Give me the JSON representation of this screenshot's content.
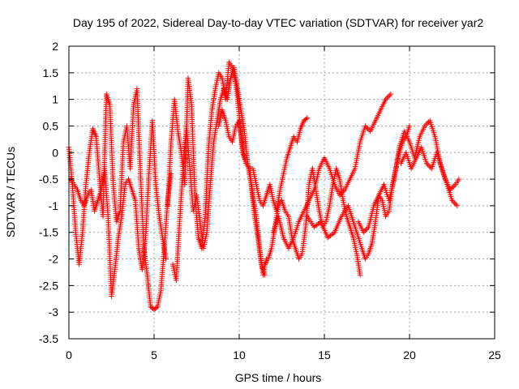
{
  "chart_data": {
    "type": "scatter",
    "title": "Day 195 of 2022, Sidereal Day-to-day VTEC variation (SDTVAR) for receiver yar2",
    "xlabel": "GPS time / hours",
    "ylabel": "SDTVAR / TECUs",
    "xlim": [
      0,
      25
    ],
    "ylim": [
      -3.5,
      2
    ],
    "xticks": [
      0,
      5,
      10,
      15,
      20,
      25
    ],
    "yticks": [
      -3.5,
      -3,
      -2.5,
      -2,
      -1.5,
      -1,
      -0.5,
      0,
      0.5,
      1,
      1.5,
      2
    ],
    "xtick_labels": [
      "0",
      "5",
      "10",
      "15",
      "20",
      "25"
    ],
    "ytick_labels": [
      "-3.5",
      "-3",
      "-2.5",
      "-2",
      "-1.5",
      "-1",
      "-0.5",
      "0",
      "0.5",
      "1",
      "1.5",
      "2"
    ],
    "grid": true,
    "marker": "+",
    "series": [
      {
        "name": "track-1",
        "color": "#ff0000",
        "x": [
          0.0,
          0.2,
          0.4,
          0.6,
          0.8,
          1.0,
          1.2,
          1.4,
          1.6,
          1.8,
          2.0,
          2.2,
          2.4,
          2.6,
          2.8,
          3.0,
          3.2,
          3.4,
          3.6,
          3.8,
          4.0,
          4.2,
          4.4,
          4.6,
          4.8,
          5.0,
          5.2,
          5.4,
          5.6,
          5.8,
          6.0
        ],
        "y": [
          0.1,
          -0.6,
          -1.5,
          -2.1,
          -1.5,
          -0.6,
          0.0,
          0.45,
          0.3,
          -0.5,
          -1.2,
          1.1,
          0.9,
          -0.6,
          -1.3,
          -1.1,
          0.2,
          0.5,
          -0.3,
          0.9,
          1.2,
          -0.4,
          -1.8,
          -2.3,
          -2.9,
          -2.95,
          -2.9,
          -2.6,
          -1.8,
          -0.9,
          -0.4
        ]
      },
      {
        "name": "track-2",
        "color": "#ff0000",
        "x": [
          0.1,
          0.3,
          0.5,
          0.7,
          0.9,
          1.1,
          1.3,
          1.5,
          1.7,
          1.9,
          2.1,
          2.3,
          2.5,
          2.7,
          2.9,
          3.1,
          3.3,
          3.5,
          3.7,
          3.9,
          4.1,
          4.3,
          4.5,
          4.7,
          4.9,
          5.1,
          5.3,
          5.5,
          5.7
        ],
        "y": [
          -0.5,
          -0.6,
          -0.7,
          -0.9,
          -1.0,
          -0.8,
          -0.7,
          -1.1,
          -0.9,
          -0.7,
          -0.3,
          -1.2,
          -2.7,
          -2.2,
          -1.6,
          -1.2,
          -0.6,
          -0.5,
          -0.7,
          -0.9,
          -1.8,
          -2.2,
          -1.6,
          -0.4,
          0.6,
          -0.6,
          -1.2,
          -1.6,
          -2.0
        ]
      },
      {
        "name": "track-3",
        "color": "#ff0000",
        "x": [
          5.8,
          6.0,
          6.2,
          6.4,
          6.6,
          6.8,
          7.0,
          7.2,
          7.4,
          7.6,
          7.8,
          8.0,
          8.2,
          8.4,
          8.6,
          8.8,
          9.0,
          9.2,
          9.4,
          9.6,
          9.8,
          10.0,
          10.2,
          10.4,
          10.6,
          10.8,
          11.0,
          11.2,
          11.4,
          11.6
        ],
        "y": [
          -1.0,
          0.2,
          1.0,
          0.4,
          0.0,
          -0.6,
          1.4,
          0.9,
          -0.8,
          -1.6,
          -1.8,
          -1.2,
          0.1,
          0.8,
          1.2,
          1.5,
          1.4,
          1.0,
          1.7,
          1.6,
          1.3,
          0.7,
          0.0,
          -0.2,
          -0.3,
          -0.8,
          -1.2,
          -1.8,
          -2.3,
          -2.0
        ]
      },
      {
        "name": "track-4",
        "color": "#ff0000",
        "x": [
          6.1,
          6.3,
          6.5,
          6.7,
          6.9,
          7.1,
          7.3,
          7.5,
          7.7,
          7.9,
          8.1,
          8.3,
          8.5,
          8.7,
          8.9,
          9.1,
          9.3,
          9.5,
          9.7,
          9.9,
          10.1,
          10.3,
          10.5,
          10.7,
          10.9,
          11.1,
          11.3,
          11.5
        ],
        "y": [
          -2.1,
          -2.4,
          -1.3,
          -0.3,
          0.5,
          -0.3,
          -1.1,
          -0.8,
          -1.3,
          -1.8,
          -1.5,
          -0.6,
          0.2,
          0.6,
          1.0,
          1.2,
          1.0,
          1.4,
          1.6,
          1.2,
          0.8,
          0.4,
          -0.2,
          -0.6,
          -1.2,
          -1.6,
          -2.1,
          -2.3
        ]
      },
      {
        "name": "track-5",
        "color": "#ff0000",
        "x": [
          8.8,
          9.0,
          9.2,
          9.4,
          9.6,
          9.8,
          10.0,
          10.2,
          10.4,
          10.6,
          10.8,
          11.0,
          11.2,
          11.4,
          11.6,
          11.8,
          12.0,
          12.2,
          12.4,
          12.6,
          12.8,
          13.0,
          13.2,
          13.4,
          13.6,
          13.8,
          14.0
        ],
        "y": [
          0.5,
          0.8,
          0.6,
          0.3,
          0.2,
          0.5,
          0.6,
          0.1,
          -0.2,
          -0.3,
          -0.3,
          -0.6,
          -0.9,
          -1.0,
          -0.8,
          -0.6,
          -0.9,
          -1.1,
          -0.7,
          -0.4,
          -0.1,
          0.1,
          0.3,
          0.2,
          0.45,
          0.6,
          0.65
        ]
      },
      {
        "name": "track-6",
        "color": "#ff0000",
        "x": [
          11.5,
          11.7,
          11.9,
          12.1,
          12.3,
          12.5,
          12.7,
          12.9,
          13.1,
          13.3,
          13.5,
          13.7,
          13.9,
          14.1,
          14.3,
          14.5,
          14.7,
          14.9,
          15.1,
          15.3,
          15.5,
          15.7,
          15.9,
          16.1,
          16.3,
          16.5,
          16.7,
          16.9,
          17.1
        ],
        "y": [
          -2.1,
          -2.0,
          -1.8,
          -1.4,
          -1.0,
          -0.9,
          -1.1,
          -1.2,
          -1.6,
          -1.8,
          -2.0,
          -1.9,
          -1.4,
          -0.6,
          -0.3,
          -0.7,
          -1.1,
          -1.4,
          -1.3,
          -1.0,
          -0.6,
          -0.3,
          -0.5,
          -0.9,
          -1.2,
          -1.4,
          -1.6,
          -1.9,
          -2.3
        ]
      },
      {
        "name": "track-7",
        "color": "#ff0000",
        "x": [
          12.0,
          12.3,
          12.6,
          12.9,
          13.2,
          13.5,
          13.8,
          14.1,
          14.4,
          14.7,
          15.0,
          15.3,
          15.6,
          15.9,
          16.2,
          16.5,
          16.8,
          17.1,
          17.4,
          17.7,
          18.0,
          18.3,
          18.6,
          18.9
        ],
        "y": [
          -1.5,
          -1.2,
          -1.6,
          -1.8,
          -1.6,
          -1.3,
          -1.1,
          -0.9,
          -0.7,
          -0.3,
          -0.1,
          -0.3,
          -0.6,
          -0.8,
          -0.7,
          -0.5,
          -0.3,
          0.2,
          0.5,
          0.4,
          0.6,
          0.8,
          1.0,
          1.1
        ]
      },
      {
        "name": "track-8",
        "color": "#ff0000",
        "x": [
          14.0,
          14.4,
          14.8,
          15.2,
          15.6,
          16.0,
          16.4,
          16.8,
          17.2,
          17.4,
          17.6,
          17.8,
          18.0,
          18.2,
          18.4,
          18.6,
          18.8,
          19.0,
          19.2,
          19.4,
          19.6,
          19.8,
          20.0
        ],
        "y": [
          -1.2,
          -1.4,
          -1.3,
          -1.6,
          -1.5,
          -1.2,
          -1.0,
          -1.4,
          -1.8,
          -2.0,
          -1.9,
          -1.7,
          -1.3,
          -0.8,
          -0.9,
          -1.2,
          -1.1,
          -0.6,
          -0.3,
          0.0,
          0.2,
          0.3,
          0.5
        ]
      },
      {
        "name": "track-9",
        "color": "#ff0000",
        "x": [
          17.0,
          17.3,
          17.6,
          17.9,
          18.2,
          18.5,
          18.8,
          19.1,
          19.4,
          19.7,
          20.0,
          20.3,
          20.6,
          20.9,
          21.2,
          21.5,
          21.8,
          22.1,
          22.4,
          22.7,
          22.9
        ],
        "y": [
          -1.3,
          -1.5,
          -1.4,
          -1.0,
          -0.8,
          -0.6,
          -0.9,
          -0.5,
          0.1,
          0.4,
          0.2,
          -0.1,
          0.3,
          0.5,
          0.6,
          0.3,
          -0.2,
          -0.5,
          -0.7,
          -0.6,
          -0.5
        ]
      },
      {
        "name": "track-10",
        "color": "#ff0000",
        "x": [
          19.5,
          19.8,
          20.1,
          20.4,
          20.7,
          21.0,
          21.3,
          21.6,
          21.9,
          22.2,
          22.5,
          22.8
        ],
        "y": [
          -0.2,
          0.0,
          -0.3,
          -0.1,
          0.1,
          -0.2,
          -0.3,
          0.0,
          -0.3,
          -0.6,
          -0.9,
          -1.0
        ]
      }
    ]
  }
}
